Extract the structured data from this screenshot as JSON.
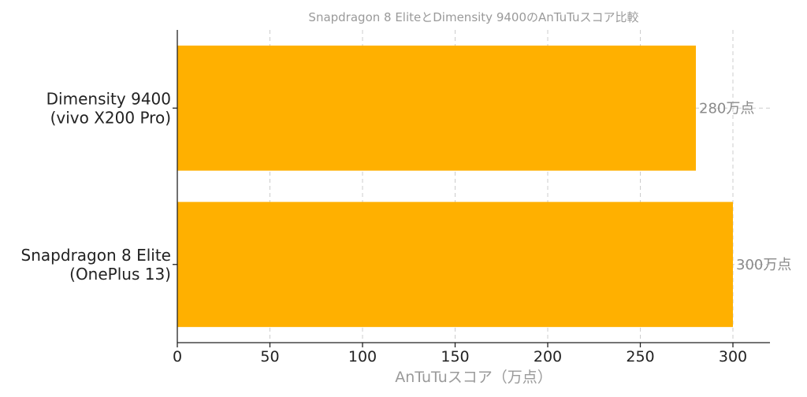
{
  "chart_data": {
    "type": "bar",
    "orientation": "horizontal",
    "title": "Snapdragon 8 EliteとDimensity 9400のAnTuTuスコア比較",
    "xlabel": "AnTuTuスコア（万点）",
    "ylabel": "",
    "categories": [
      [
        "Dimensity 9400",
        "(vivo X200 Pro)"
      ],
      [
        "Snapdragon 8 Elite",
        "(OnePlus 13)"
      ]
    ],
    "values": [
      280,
      300
    ],
    "data_labels": [
      "280万点",
      "300万点"
    ],
    "xlim": [
      0,
      320
    ],
    "xticks": [
      0,
      50,
      100,
      150,
      200,
      250,
      300
    ],
    "grid": true,
    "bar_color": "#FFB000"
  }
}
